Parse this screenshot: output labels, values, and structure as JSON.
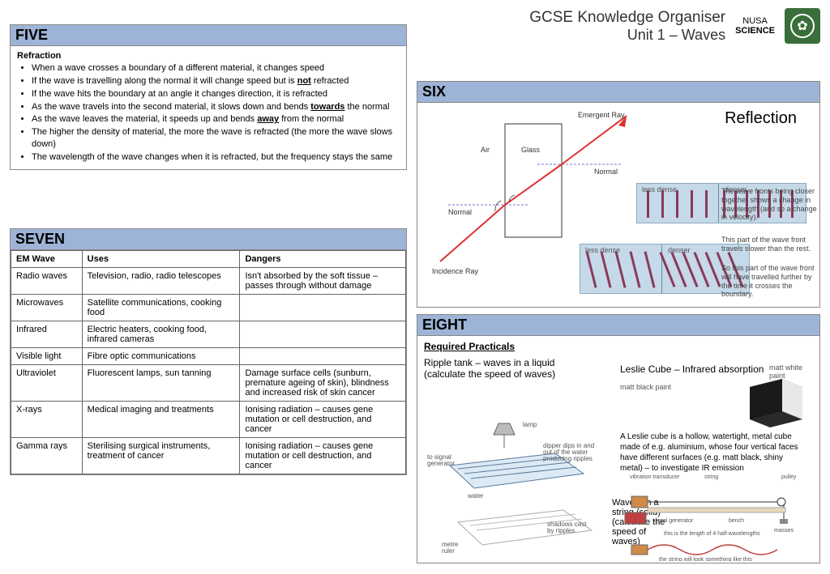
{
  "header": {
    "title": "GCSE Knowledge Organiser",
    "subtitle": "Unit 1 – Waves",
    "brand_top": "NUSA",
    "brand_bottom": "SCIENCE",
    "logo_bg": "#3a6e3a"
  },
  "five": {
    "title": "FIVE",
    "subtitle": "Refraction",
    "bullets": [
      "When a wave crosses a boundary of a different material, it changes speed",
      "If the wave is travelling along the normal it will change speed but is <u><b>not</b></u> refracted",
      "If the wave hits the boundary at an angle it changes direction, it is refracted",
      "As the wave travels into the second material, it slows down and bends <u><b>towards</b></u> the normal",
      "As the wave leaves the material, it speeds up and bends <u><b>away</b></u> from the normal",
      "The higher the density of material, the more the wave is refracted (the more the wave slows down)",
      "The wavelength of the wave changes when it is refracted, but the frequency stays the same"
    ]
  },
  "six": {
    "title": "SIX",
    "reflection_label": "Reflection",
    "diagram": {
      "air": "Air",
      "glass": "Glass",
      "emergent": "Emergent Ray",
      "normal": "Normal",
      "incidence": "Incidence Ray",
      "less_dense": "less dense",
      "denser": "denser",
      "ray_color": "#e03030",
      "normal_color": "#7a7ad0",
      "note1": "The wave fronts being closer together shows a change in wavelength (and so a change in velocity).",
      "note2": "This part of the wave front travels slower than the rest.",
      "note3": "So this part of the wave front will have travelled further by the time it crosses the boundary."
    }
  },
  "seven": {
    "title": "SEVEN",
    "columns": [
      "EM Wave",
      "Uses",
      "Dangers"
    ],
    "rows": [
      [
        "Radio waves",
        "Television, radio, radio telescopes",
        "Isn't absorbed by the soft tissue – passes through without damage"
      ],
      [
        "Microwaves",
        "Satellite communications, cooking food",
        ""
      ],
      [
        "Infrared",
        "Electric heaters, cooking food, infrared cameras",
        ""
      ],
      [
        "Visible light",
        "Fibre optic communications",
        ""
      ],
      [
        "Ultraviolet",
        "Fluorescent lamps, sun tanning",
        "Damage surface cells (sunburn, premature ageing of skin), blindness and increased risk of skin cancer"
      ],
      [
        "X-rays",
        "Medical imaging and treatments",
        "Ionising radiation – causes gene mutation or cell destruction, and cancer"
      ],
      [
        "Gamma rays",
        "Sterilising surgical instruments, treatment of cancer",
        "Ionising radiation – causes gene mutation or cell destruction, and cancer"
      ]
    ],
    "col_widths": [
      "18%",
      "40%",
      "42%"
    ]
  },
  "eight": {
    "title": "EIGHT",
    "required": "Required Practicals",
    "ripple_title": "Ripple tank – waves in a liquid (calculate the speed of waves)",
    "ripple_labels": {
      "lamp": "lamp",
      "dipper": "dipper dips in and out of the water producing ripples",
      "signal": "to signal generator",
      "water": "water",
      "shadows": "shadows cast by ripples",
      "ruler": "metre ruler"
    },
    "leslie": {
      "title": "Leslie Cube – Infrared absorption",
      "matt_black": "matt black paint",
      "matt_white": "matt white paint",
      "desc": "A Leslie cube is a hollow, watertight, metal cube made of e.g. aluminium, whose four vertical faces have different surfaces (e.g. matt black, shiny metal) – to investigate IR emission"
    },
    "string": {
      "title": "Waves on a string (solid) (calculate the speed of waves)",
      "labels": {
        "vib": "vibration transducer",
        "str": "string",
        "pulley": "pulley",
        "sig": "signal generator",
        "bench": "bench",
        "mass": "masses",
        "len": "this is the length of 4 half-wavelengths",
        "look": "the string will look something like this"
      }
    }
  }
}
